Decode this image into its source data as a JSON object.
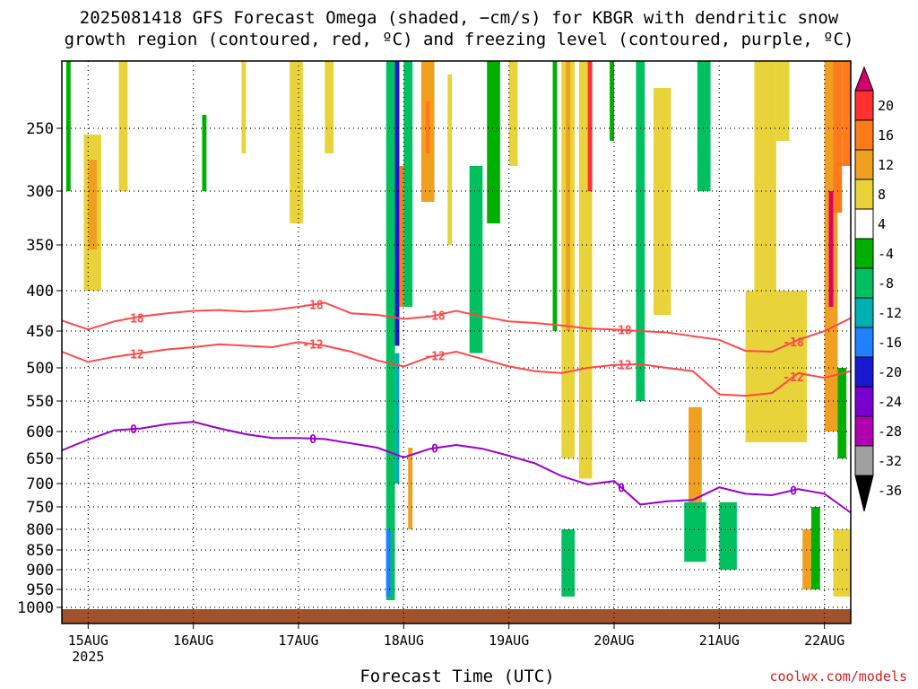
{
  "title": {
    "line1": "2025081418 GFS Forecast Omega (shaded, −cm/s) for KBGR with dendritic snow",
    "line2": "growth region (contoured, red, ºC) and freezing level (contoured, purple, ºC)"
  },
  "credit": "coolwx.com/models",
  "chart_data": {
    "type": "heatmap",
    "xlabel": "Forecast Time (UTC)",
    "ylabel": "",
    "x_ticks": [
      {
        "label": "15AUG",
        "sub": "2025",
        "hour": 6
      },
      {
        "label": "16AUG",
        "hour": 30
      },
      {
        "label": "17AUG",
        "hour": 54
      },
      {
        "label": "18AUG",
        "hour": 78
      },
      {
        "label": "19AUG",
        "hour": 102
      },
      {
        "label": "20AUG",
        "hour": 126
      },
      {
        "label": "21AUG",
        "hour": 150
      },
      {
        "label": "22AUG",
        "hour": 174
      }
    ],
    "xlim_hours": [
      0,
      180
    ],
    "y_ticks": [
      250,
      300,
      350,
      400,
      450,
      500,
      550,
      600,
      650,
      700,
      750,
      800,
      850,
      900,
      950,
      1000
    ],
    "ylim_hPa": [
      1010,
      200
    ],
    "grid": true,
    "colorbar": {
      "labels": [
        "20",
        "16",
        "12",
        "8",
        "4",
        "-4",
        "-8",
        "-12",
        "-16",
        "-20",
        "-24",
        "-28",
        "-32",
        "-36"
      ],
      "colors": [
        "#d8006a",
        "#ff3030",
        "#ff7b1a",
        "#f0a020",
        "#e8d43a",
        "#ffffff",
        "#00b000",
        "#00c060",
        "#00b0b0",
        "#2080ff",
        "#1818d0",
        "#7a00d0",
        "#b000b0",
        "#a0a0a0"
      ]
    },
    "contours": [
      {
        "label": "-18",
        "color": "#ff4848",
        "hours": [
          0,
          6,
          12,
          18,
          24,
          30,
          36,
          42,
          48,
          54,
          60,
          66,
          72,
          78,
          84,
          90,
          96,
          102,
          108,
          114,
          120,
          126,
          132,
          138,
          144,
          150,
          156,
          162,
          168,
          174,
          180
        ],
        "pressure": [
          437,
          448,
          438,
          432,
          428,
          425,
          424,
          426,
          424,
          420,
          415,
          428,
          430,
          435,
          432,
          425,
          432,
          438,
          440,
          443,
          447,
          448,
          450,
          452,
          457,
          462,
          477,
          478,
          462,
          450,
          434
        ]
      },
      {
        "label": "-12",
        "color": "#ff4848",
        "hours": [
          0,
          6,
          12,
          18,
          24,
          30,
          36,
          42,
          48,
          54,
          60,
          66,
          72,
          78,
          84,
          90,
          96,
          102,
          108,
          114,
          120,
          126,
          132,
          138,
          144,
          150,
          156,
          162,
          168,
          174,
          180
        ],
        "pressure": [
          478,
          492,
          485,
          480,
          475,
          472,
          468,
          470,
          472,
          465,
          470,
          478,
          490,
          498,
          485,
          478,
          488,
          498,
          505,
          508,
          500,
          496,
          495,
          500,
          505,
          540,
          542,
          538,
          508,
          515,
          505
        ]
      },
      {
        "label": "0",
        "color": "#9900cc",
        "hours": [
          0,
          6,
          12,
          18,
          24,
          30,
          36,
          42,
          48,
          54,
          60,
          66,
          72,
          78,
          84,
          90,
          96,
          102,
          108,
          114,
          120,
          126,
          132,
          138,
          144,
          150,
          156,
          162,
          168,
          174,
          180
        ],
        "pressure": [
          635,
          615,
          598,
          595,
          588,
          584,
          595,
          605,
          612,
          612,
          614,
          622,
          630,
          648,
          632,
          625,
          632,
          645,
          660,
          685,
          702,
          695,
          745,
          738,
          735,
          708,
          722,
          725,
          712,
          722,
          763
        ]
      }
    ],
    "omega_cells": [
      {
        "t0": 1,
        "t1": 2,
        "p0": 200,
        "p1": 300,
        "v": -6
      },
      {
        "t0": 5,
        "t1": 9,
        "p0": 255,
        "p1": 400,
        "v": 6
      },
      {
        "t0": 6,
        "t1": 8,
        "p0": 275,
        "p1": 355,
        "v": 10
      },
      {
        "t0": 13,
        "t1": 15,
        "p0": 200,
        "p1": 300,
        "v": 5
      },
      {
        "t0": 32,
        "t1": 33,
        "p0": 240,
        "p1": 300,
        "v": -6
      },
      {
        "t0": 41,
        "t1": 42,
        "p0": 200,
        "p1": 270,
        "v": 5
      },
      {
        "t0": 52,
        "t1": 55,
        "p0": 200,
        "p1": 330,
        "v": 5
      },
      {
        "t0": 60,
        "t1": 62,
        "p0": 200,
        "p1": 270,
        "v": 5
      },
      {
        "t0": 74,
        "t1": 76,
        "p0": 200,
        "p1": 980,
        "v": -8
      },
      {
        "t0": 76,
        "t1": 77,
        "p0": 200,
        "p1": 470,
        "v": -22
      },
      {
        "t0": 76,
        "t1": 77,
        "p0": 480,
        "p1": 700,
        "v": -14
      },
      {
        "t0": 74,
        "t1": 75,
        "p0": 800,
        "p1": 970,
        "v": -18
      },
      {
        "t0": 77,
        "t1": 78,
        "p0": 280,
        "p1": 420,
        "v": 12
      },
      {
        "t0": 78,
        "t1": 80,
        "p0": 200,
        "p1": 420,
        "v": -10
      },
      {
        "t0": 79,
        "t1": 80,
        "p0": 630,
        "p1": 800,
        "v": 10
      },
      {
        "t0": 82,
        "t1": 85,
        "p0": 200,
        "p1": 310,
        "v": 8
      },
      {
        "t0": 83,
        "t1": 84,
        "p0": 230,
        "p1": 270,
        "v": 14
      },
      {
        "t0": 88,
        "t1": 89,
        "p0": 210,
        "p1": 350,
        "v": 5
      },
      {
        "t0": 93,
        "t1": 96,
        "p0": 280,
        "p1": 480,
        "v": -8
      },
      {
        "t0": 97,
        "t1": 100,
        "p0": 200,
        "p1": 330,
        "v": -6
      },
      {
        "t0": 102,
        "t1": 104,
        "p0": 200,
        "p1": 280,
        "v": 5
      },
      {
        "t0": 112,
        "t1": 113,
        "p0": 200,
        "p1": 450,
        "v": -6
      },
      {
        "t0": 114,
        "t1": 117,
        "p0": 200,
        "p1": 650,
        "v": 5
      },
      {
        "t0": 115,
        "t1": 116,
        "p0": 200,
        "p1": 450,
        "v": 10
      },
      {
        "t0": 114,
        "t1": 117,
        "p0": 800,
        "p1": 970,
        "v": -10
      },
      {
        "t0": 118,
        "t1": 121,
        "p0": 200,
        "p1": 690,
        "v": 6
      },
      {
        "t0": 120,
        "t1": 121,
        "p0": 200,
        "p1": 300,
        "v": 16
      },
      {
        "t0": 125,
        "t1": 126,
        "p0": 200,
        "p1": 260,
        "v": -6
      },
      {
        "t0": 131,
        "t1": 133,
        "p0": 200,
        "p1": 550,
        "v": -8
      },
      {
        "t0": 135,
        "t1": 139,
        "p0": 220,
        "p1": 430,
        "v": 5
      },
      {
        "t0": 145,
        "t1": 148,
        "p0": 200,
        "p1": 300,
        "v": -8
      },
      {
        "t0": 143,
        "t1": 146,
        "p0": 560,
        "p1": 780,
        "v": 8
      },
      {
        "t0": 142,
        "t1": 147,
        "p0": 740,
        "p1": 880,
        "v": -8
      },
      {
        "t0": 150,
        "t1": 154,
        "p0": 740,
        "p1": 900,
        "v": -8
      },
      {
        "t0": 156,
        "t1": 170,
        "p0": 400,
        "p1": 620,
        "v": 5
      },
      {
        "t0": 158,
        "t1": 163,
        "p0": 200,
        "p1": 400,
        "v": 6
      },
      {
        "t0": 163,
        "t1": 166,
        "p0": 200,
        "p1": 260,
        "v": 5
      },
      {
        "t0": 169,
        "t1": 171,
        "p0": 800,
        "p1": 950,
        "v": 10
      },
      {
        "t0": 171,
        "t1": 173,
        "p0": 750,
        "p1": 950,
        "v": -6
      },
      {
        "t0": 174,
        "t1": 177,
        "p0": 200,
        "p1": 600,
        "v": 8
      },
      {
        "t0": 175,
        "t1": 176,
        "p0": 300,
        "p1": 420,
        "v": 20
      },
      {
        "t0": 176,
        "t1": 178,
        "p0": 200,
        "p1": 320,
        "v": 12
      },
      {
        "t0": 178,
        "t1": 180,
        "p0": 200,
        "p1": 280,
        "v": 12
      },
      {
        "t0": 177,
        "t1": 179,
        "p0": 500,
        "p1": 650,
        "v": -6
      },
      {
        "t0": 176,
        "t1": 180,
        "p0": 800,
        "p1": 970,
        "v": 5
      }
    ]
  }
}
